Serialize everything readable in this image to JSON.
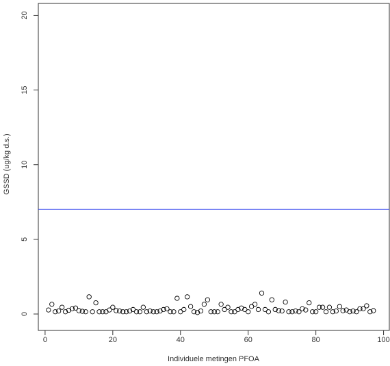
{
  "chart_data": {
    "type": "scatter",
    "x_label": "Individuele metingen PFOA",
    "y_label": "GSSD (ug/kg d.s.)",
    "x": [
      1,
      2,
      3,
      4,
      5,
      6,
      7,
      8,
      9,
      10,
      11,
      12,
      13,
      14,
      15,
      16,
      17,
      18,
      19,
      20,
      21,
      22,
      23,
      24,
      25,
      26,
      27,
      28,
      29,
      30,
      31,
      32,
      33,
      34,
      35,
      36,
      37,
      38,
      39,
      40,
      41,
      42,
      43,
      44,
      45,
      46,
      47,
      48,
      49,
      50,
      51,
      52,
      53,
      54,
      55,
      56,
      57,
      58,
      59,
      60,
      61,
      62,
      63,
      64,
      65,
      66,
      67,
      68,
      69,
      70,
      71,
      72,
      73,
      74,
      75,
      76,
      77,
      78,
      79,
      80,
      81,
      82,
      83,
      84,
      85,
      86,
      87,
      88,
      89,
      90,
      91,
      92,
      93,
      94,
      95,
      96,
      97
    ],
    "values": [
      0.27,
      0.65,
      0.15,
      0.2,
      0.45,
      0.15,
      0.25,
      0.35,
      0.4,
      0.22,
      0.18,
      0.15,
      1.15,
      0.15,
      0.75,
      0.15,
      0.15,
      0.15,
      0.27,
      0.45,
      0.22,
      0.2,
      0.15,
      0.15,
      0.2,
      0.3,
      0.15,
      0.15,
      0.45,
      0.15,
      0.2,
      0.15,
      0.15,
      0.2,
      0.3,
      0.35,
      0.15,
      0.15,
      1.05,
      0.15,
      0.3,
      1.15,
      0.5,
      0.15,
      0.1,
      0.2,
      0.65,
      0.95,
      0.15,
      0.15,
      0.15,
      0.65,
      0.3,
      0.45,
      0.15,
      0.15,
      0.3,
      0.4,
      0.3,
      0.15,
      0.5,
      0.65,
      0.3,
      1.4,
      0.3,
      0.15,
      0.95,
      0.3,
      0.22,
      0.2,
      0.8,
      0.15,
      0.15,
      0.2,
      0.15,
      0.35,
      0.27,
      0.75,
      0.15,
      0.15,
      0.45,
      0.45,
      0.15,
      0.45,
      0.15,
      0.2,
      0.5,
      0.22,
      0.27,
      0.15,
      0.2,
      0.15,
      0.35,
      0.35,
      0.55,
      0.15,
      0.22
    ],
    "color": "#000000",
    "reference_line": {
      "value": 7,
      "color": "#3344ee"
    },
    "xlim": [
      -2,
      101.7
    ],
    "ylim": [
      -1.1,
      20.8
    ],
    "xticks": [
      0,
      20,
      40,
      60,
      80,
      100
    ],
    "yticks": [
      0,
      5,
      10,
      15,
      20
    ]
  }
}
